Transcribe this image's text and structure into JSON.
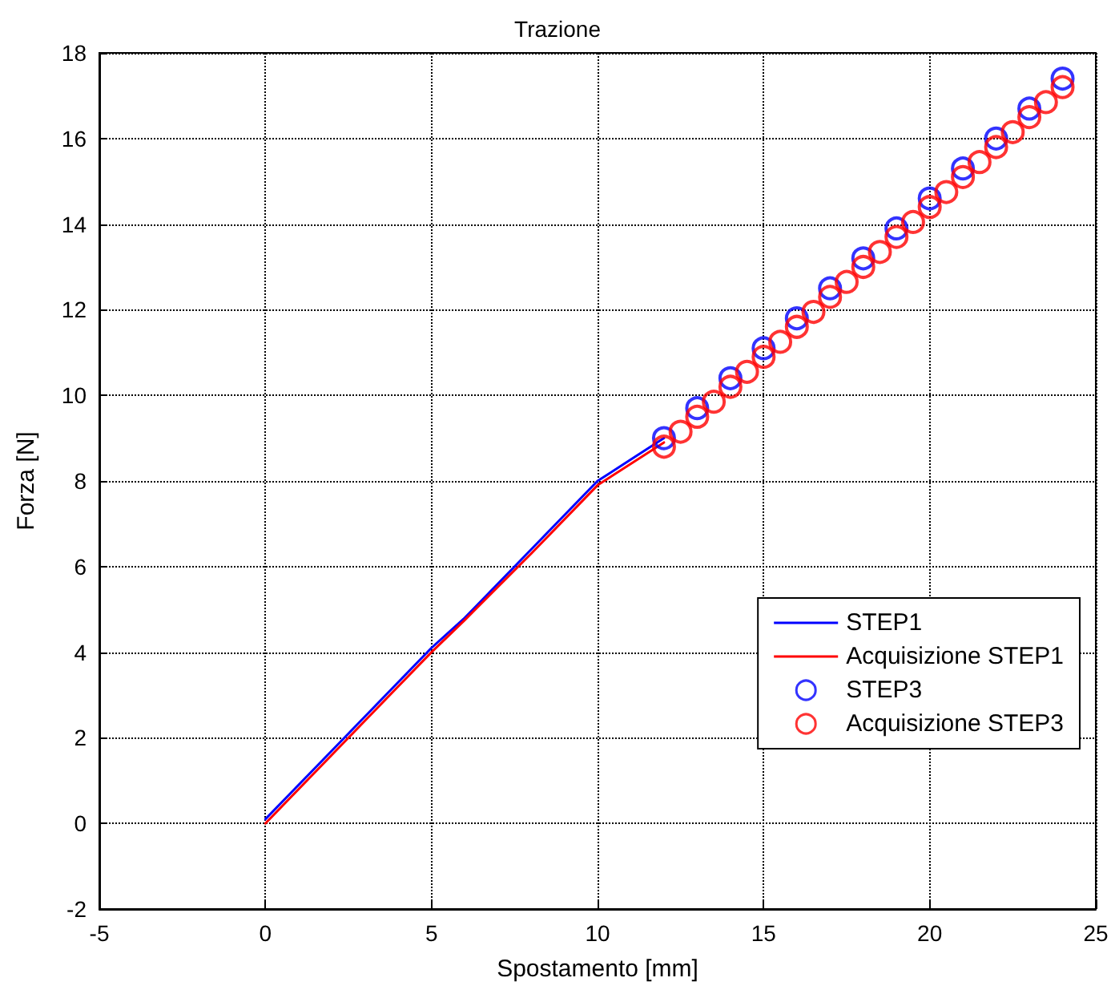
{
  "chart_data": {
    "type": "line",
    "title": "Trazione",
    "xlabel": "Spostamento [mm]",
    "ylabel": "Forza [N]",
    "xlim": [
      -5,
      25
    ],
    "xticks": [
      -5,
      0,
      5,
      10,
      15,
      20,
      25
    ],
    "ylim": [
      -2,
      18
    ],
    "yticks": [
      -2,
      0,
      2,
      4,
      6,
      8,
      10,
      12,
      14,
      16,
      18
    ],
    "grid": true,
    "legend": "bottom right",
    "series": [
      {
        "name": "STEP1",
        "type": "line",
        "color": "#0000ff",
        "marker": "none",
        "line_style": "solid",
        "x": [
          0,
          2,
          4,
          5,
          6,
          8,
          10,
          11,
          12
        ],
        "values": [
          0.1,
          1.7,
          3.3,
          4.1,
          4.8,
          6.4,
          8.0,
          8.5,
          9.0
        ]
      },
      {
        "name": "Acquisizione STEP1",
        "type": "line",
        "color": "#ff0000",
        "marker": "none",
        "line_style": "solid",
        "x": [
          0,
          2,
          4,
          5,
          6,
          8,
          10,
          12
        ],
        "values": [
          0.0,
          1.6,
          3.2,
          4.0,
          4.75,
          6.3,
          7.9,
          8.9
        ]
      },
      {
        "name": "STEP3",
        "type": "scatter",
        "color": "#0000ff",
        "marker": "circle",
        "x": [
          12,
          13,
          14,
          15,
          16,
          17,
          18,
          19,
          20,
          21,
          22,
          23,
          24
        ],
        "values": [
          9.0,
          9.7,
          10.4,
          11.1,
          11.8,
          12.5,
          13.2,
          13.9,
          14.6,
          15.3,
          16.0,
          16.7,
          17.4
        ]
      },
      {
        "name": "Acquisizione STEP3",
        "type": "scatter",
        "color": "#ff0000",
        "marker": "circle",
        "x": [
          12,
          12.5,
          13,
          13.5,
          14,
          14.5,
          15,
          15.5,
          16,
          16.5,
          17,
          17.5,
          18,
          18.5,
          19,
          19.5,
          20,
          20.5,
          21,
          21.5,
          22,
          22.5,
          23,
          23.5,
          24
        ],
        "values": [
          8.8,
          9.15,
          9.5,
          9.85,
          10.2,
          10.55,
          10.9,
          11.25,
          11.6,
          11.95,
          12.3,
          12.65,
          13.0,
          13.35,
          13.7,
          14.05,
          14.4,
          14.75,
          15.1,
          15.45,
          15.8,
          16.15,
          16.5,
          16.85,
          17.2
        ]
      }
    ]
  }
}
